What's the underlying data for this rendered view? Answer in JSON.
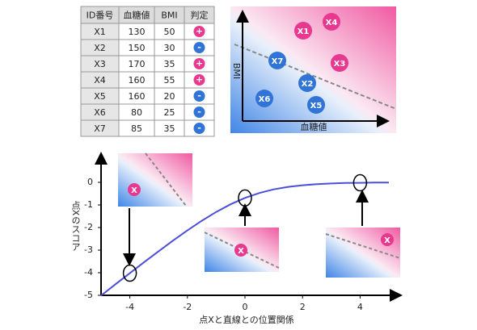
{
  "table": {
    "headers": [
      "ID番号",
      "血糖値",
      "BMI",
      "判定"
    ],
    "rows": [
      [
        "X1",
        "130",
        "50",
        {
          "label": "+",
          "color": "#e8388f"
        }
      ],
      [
        "X2",
        "150",
        "30",
        {
          "label": "-",
          "color": "#2f74d6"
        }
      ],
      [
        "X3",
        "170",
        "35",
        {
          "label": "+",
          "color": "#e8388f"
        }
      ],
      [
        "X4",
        "160",
        "55",
        {
          "label": "+",
          "color": "#e8388f"
        }
      ],
      [
        "X5",
        "160",
        "20",
        {
          "label": "-",
          "color": "#2f74d6"
        }
      ],
      [
        "X6",
        "80",
        "25",
        {
          "label": "-",
          "color": "#2f74d6"
        }
      ],
      [
        "X7",
        "85",
        "35",
        {
          "label": "-",
          "color": "#2f74d6"
        }
      ]
    ]
  },
  "scatter": {
    "x_label": "血糖値",
    "y_label": "BMI",
    "points": [
      {
        "label": "X1",
        "color": "#e8388f"
      },
      {
        "label": "X2",
        "color": "#2f74d6"
      },
      {
        "label": "X3",
        "color": "#e8388f"
      },
      {
        "label": "X4",
        "color": "#e8388f"
      },
      {
        "label": "X5",
        "color": "#2f74d6"
      },
      {
        "label": "X6",
        "color": "#2f74d6"
      },
      {
        "label": "X7",
        "color": "#2f74d6"
      }
    ]
  },
  "plot": {
    "x_label": "点Xと直線との位置関係",
    "y_label": "点Xのスコア",
    "color": "#4b4fd8",
    "xlim": [
      -5,
      5
    ],
    "ylim": [
      -5,
      0.5
    ],
    "xticks": [
      -4,
      -2,
      0,
      2,
      4
    ],
    "yticks": [
      -5,
      -4,
      -3,
      -2,
      -1,
      0
    ],
    "curve": {
      "x": [
        -5,
        -4.5,
        -4,
        -3.5,
        -3,
        -2.5,
        -2,
        -1.5,
        -1,
        -0.5,
        0,
        0.5,
        1,
        1.5,
        2,
        2.5,
        3,
        3.5,
        4,
        4.5,
        5
      ],
      "y": [
        -5.01,
        -4.51,
        -4.02,
        -3.53,
        -3.05,
        -2.58,
        -2.13,
        -1.7,
        -1.31,
        -0.97,
        -0.69,
        -0.47,
        -0.31,
        -0.2,
        -0.13,
        -0.08,
        -0.05,
        -0.03,
        -0.02,
        -0.01,
        -0.01
      ]
    },
    "highlights": [
      {
        "x": -4,
        "y": -4.02
      },
      {
        "x": 0,
        "y": -0.69
      },
      {
        "x": 4,
        "y": -0.02
      }
    ],
    "insets": [
      {
        "label": "X"
      },
      {
        "label": "X"
      },
      {
        "label": "X"
      }
    ]
  }
}
